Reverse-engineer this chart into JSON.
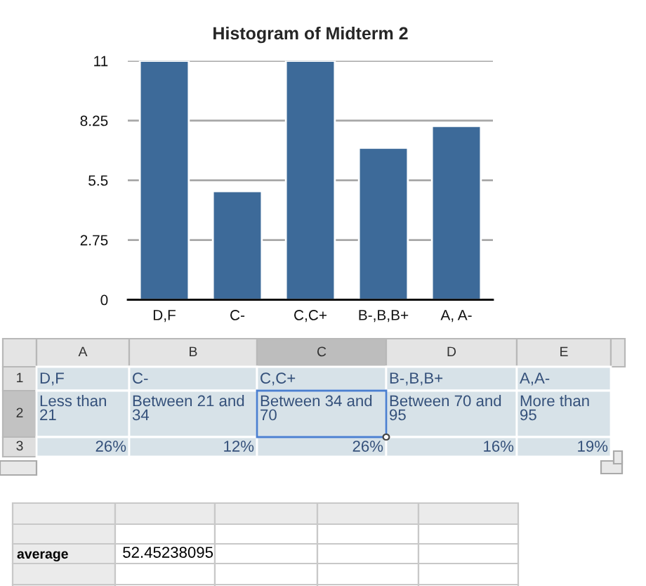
{
  "chart_data": {
    "type": "bar",
    "title": "Histogram of Midterm 2",
    "categories": [
      "D,F",
      "C-",
      "C,C+",
      "B-,B,B+",
      "A, A-"
    ],
    "values": [
      11,
      5,
      11,
      7,
      8
    ],
    "color": "#3d6a99",
    "ylim": [
      0,
      11
    ],
    "yticks": [
      0,
      2.75,
      5.5,
      8.25,
      11
    ],
    "grid": "y",
    "annotations": [
      "A",
      "B",
      "C",
      "D",
      "E",
      "1",
      "2",
      "3",
      "D,F",
      "C-",
      "C,C+",
      "B-,B,B+",
      "A,A-",
      "Less than\n21",
      "Between 21 and\n34",
      "Between 34 and\n70",
      "Between 70 and\n95",
      "More than\n95",
      "26%",
      "12%",
      "26%",
      "16%",
      "19%",
      "average",
      "52.45238095"
    ]
  }
}
